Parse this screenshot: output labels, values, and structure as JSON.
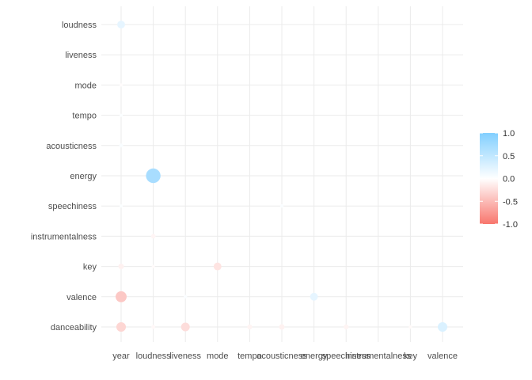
{
  "chart_data": {
    "type": "scatter",
    "subtype": "correlation-bubble-matrix",
    "x_categories": [
      "year",
      "loudness",
      "liveness",
      "mode",
      "tempo",
      "acousticness",
      "energy",
      "speechiness",
      "instrumentalness",
      "key",
      "valence"
    ],
    "y_categories": [
      "danceability",
      "valence",
      "key",
      "instrumentalness",
      "speechiness",
      "energy",
      "acousticness",
      "tempo",
      "mode",
      "liveness",
      "loudness"
    ],
    "points": [
      {
        "x": "year",
        "y": "loudness",
        "value": 0.2
      },
      {
        "x": "year",
        "y": "acousticness",
        "value": 0.05
      },
      {
        "x": "year",
        "y": "tempo",
        "value": 0.03
      },
      {
        "x": "year",
        "y": "mode",
        "value": -0.02
      },
      {
        "x": "year",
        "y": "speechiness",
        "value": 0.03
      },
      {
        "x": "year",
        "y": "key",
        "value": -0.1
      },
      {
        "x": "year",
        "y": "valence",
        "value": -0.4
      },
      {
        "x": "year",
        "y": "danceability",
        "value": -0.3
      },
      {
        "x": "loudness",
        "y": "energy",
        "value": 0.7
      },
      {
        "x": "loudness",
        "y": "instrumentalness",
        "value": -0.07
      },
      {
        "x": "loudness",
        "y": "key",
        "value": -0.03
      },
      {
        "x": "loudness",
        "y": "danceability",
        "value": -0.05
      },
      {
        "x": "liveness",
        "y": "valence",
        "value": 0.04
      },
      {
        "x": "liveness",
        "y": "danceability",
        "value": -0.25
      },
      {
        "x": "mode",
        "y": "key",
        "value": -0.2
      },
      {
        "x": "tempo",
        "y": "danceability",
        "value": -0.08
      },
      {
        "x": "acousticness",
        "y": "speechiness",
        "value": 0.04
      },
      {
        "x": "acousticness",
        "y": "danceability",
        "value": -0.1
      },
      {
        "x": "energy",
        "y": "valence",
        "value": 0.2
      },
      {
        "x": "speechiness",
        "y": "danceability",
        "value": -0.08
      },
      {
        "x": "key",
        "y": "danceability",
        "value": -0.04
      },
      {
        "x": "valence",
        "y": "danceability",
        "value": 0.3
      }
    ],
    "size_encodes": "absolute value",
    "color_scale": {
      "low_color": "#f8766d",
      "mid_color": "#ffffff",
      "high_color": "#82cfff",
      "limits": [
        -1.0,
        1.0
      ],
      "ticks": [
        "1.0",
        "0.5",
        "0.0",
        "-0.5",
        "-1.0"
      ],
      "tick_values": [
        1.0,
        0.5,
        0.0,
        -0.5,
        -1.0
      ]
    },
    "legend": {
      "position": "right",
      "title": ""
    },
    "grid": true,
    "title": "",
    "xlabel": "",
    "ylabel": ""
  }
}
